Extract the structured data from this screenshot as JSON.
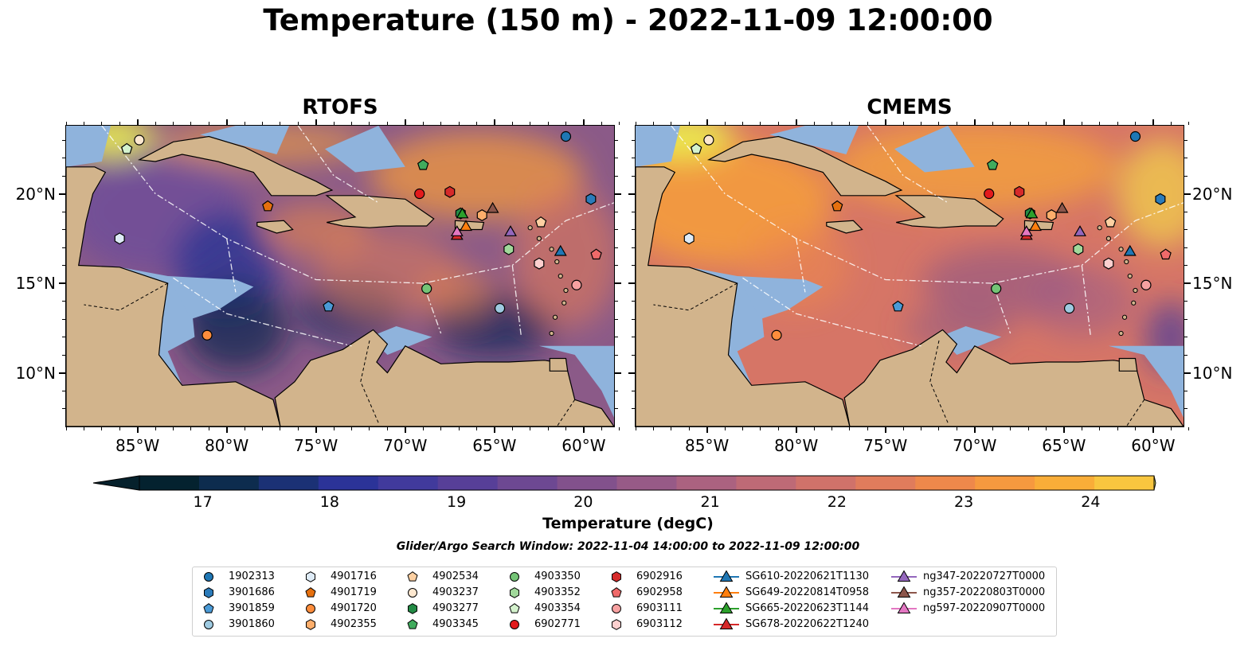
{
  "title": "Temperature (150 m) - 2022-11-09 12:00:00",
  "panels": [
    {
      "title": "RTOFS",
      "palette": "rtofs"
    },
    {
      "title": "CMEMS",
      "palette": "cmems"
    }
  ],
  "lat_ticks": [
    {
      "value": 10,
      "label": "10°N"
    },
    {
      "value": 15,
      "label": "15°N"
    },
    {
      "value": 20,
      "label": "20°N"
    }
  ],
  "lon_ticks": [
    {
      "value": -85,
      "label": "85°W"
    },
    {
      "value": -80,
      "label": "80°W"
    },
    {
      "value": -75,
      "label": "75°W"
    },
    {
      "value": -70,
      "label": "70°W"
    },
    {
      "value": -65,
      "label": "65°W"
    },
    {
      "value": -60,
      "label": "60°W"
    }
  ],
  "extent": {
    "lon_min": -89,
    "lon_max": -58.3,
    "lat_min": 7,
    "lat_max": 23.8
  },
  "colorbar": {
    "label": "Temperature (degC)",
    "min": 16.5,
    "max": 24.5,
    "step": 0.5,
    "ticks": [
      "17",
      "18",
      "19",
      "20",
      "21",
      "22",
      "23",
      "24"
    ],
    "colors": [
      "#04222f",
      "#0d2c4e",
      "#1b3175",
      "#2b3398",
      "#413a9c",
      "#573f98",
      "#6d4892",
      "#82518c",
      "#975a87",
      "#ab6280",
      "#be6a76",
      "#d0726a",
      "#e07c5c",
      "#ee884b",
      "#f6993f",
      "#f9ad38",
      "#f8c63f"
    ],
    "low_color": "#06212c",
    "high_color": "#ecf24e"
  },
  "search_window": "Glider/Argo Search Window: 2022-11-04 14:00:00 to 2022-11-09 12:00:00",
  "stations": [
    {
      "id": "1902313",
      "marker": "circle",
      "color": "#1f77b4",
      "lon": -61.0,
      "lat": 23.2
    },
    {
      "id": "3901686",
      "marker": "hexagon",
      "color": "#2b7bba",
      "lon": -59.6,
      "lat": 19.7
    },
    {
      "id": "3901859",
      "marker": "pentagon",
      "color": "#4a9ad6",
      "lon": -74.3,
      "lat": 13.7
    },
    {
      "id": "3901860",
      "marker": "circle",
      "color": "#9ecae1",
      "lon": -64.7,
      "lat": 13.6
    },
    {
      "id": "4901716",
      "marker": "hexagon",
      "color": "#deebf7",
      "lon": -86.0,
      "lat": 17.5
    },
    {
      "id": "4901719",
      "marker": "pentagon",
      "color": "#e6700e",
      "lon": -77.7,
      "lat": 19.3
    },
    {
      "id": "4901720",
      "marker": "circle",
      "color": "#fd8d3c",
      "lon": -81.1,
      "lat": 12.1
    },
    {
      "id": "4902355",
      "marker": "hexagon",
      "color": "#fdae6b",
      "lon": -65.7,
      "lat": 18.8
    },
    {
      "id": "4902534",
      "marker": "pentagon",
      "color": "#fdd0a2",
      "lon": -62.4,
      "lat": 18.4
    },
    {
      "id": "4903237",
      "marker": "circle",
      "color": "#fde8d0",
      "lon": -84.9,
      "lat": 23.0
    },
    {
      "id": "4903277",
      "marker": "hexagon",
      "color": "#238b45",
      "lon": -66.9,
      "lat": 18.9
    },
    {
      "id": "4903345",
      "marker": "pentagon",
      "color": "#41ab5d",
      "lon": -69.0,
      "lat": 21.6
    },
    {
      "id": "4903350",
      "marker": "circle",
      "color": "#74c476",
      "lon": -68.8,
      "lat": 14.7
    },
    {
      "id": "4903352",
      "marker": "hexagon",
      "color": "#a1d99b",
      "lon": -64.2,
      "lat": 16.9
    },
    {
      "id": "4903354",
      "marker": "pentagon",
      "color": "#d4f2cd",
      "lon": -85.6,
      "lat": 22.5
    },
    {
      "id": "6902771",
      "marker": "circle",
      "color": "#e31a1c",
      "lon": -69.2,
      "lat": 20.0
    },
    {
      "id": "6902916",
      "marker": "hexagon",
      "color": "#d62a2a",
      "lon": -67.5,
      "lat": 20.1
    },
    {
      "id": "6902958",
      "marker": "pentagon",
      "color": "#f06a6a",
      "lon": -59.3,
      "lat": 16.6
    },
    {
      "id": "6903111",
      "marker": "circle",
      "color": "#f7a1a1",
      "lon": -60.4,
      "lat": 14.9
    },
    {
      "id": "6903112",
      "marker": "hexagon",
      "color": "#fdd0cf",
      "lon": -62.5,
      "lat": 16.1
    }
  ],
  "gliders": [
    {
      "id": "SG610-20220621T1130",
      "color": "#1f77b4",
      "lon": -61.3,
      "lat": 16.8
    },
    {
      "id": "SG649-20220814T0958",
      "color": "#ff7f0e",
      "lon": -66.6,
      "lat": 18.2
    },
    {
      "id": "SG665-20220623T1144",
      "color": "#2ca02c",
      "lon": -66.8,
      "lat": 18.9
    },
    {
      "id": "SG678-20220622T1240",
      "color": "#d62728",
      "lon": -67.1,
      "lat": 17.7
    },
    {
      "id": "ng347-20220727T0000",
      "color": "#9467bd",
      "lon": -64.1,
      "lat": 17.9
    },
    {
      "id": "ng357-20220803T0000",
      "color": "#8c564b",
      "lon": -65.1,
      "lat": 19.2
    },
    {
      "id": "ng597-20220907T0000",
      "color": "#e377c2",
      "lon": -67.1,
      "lat": 17.9
    }
  ]
}
